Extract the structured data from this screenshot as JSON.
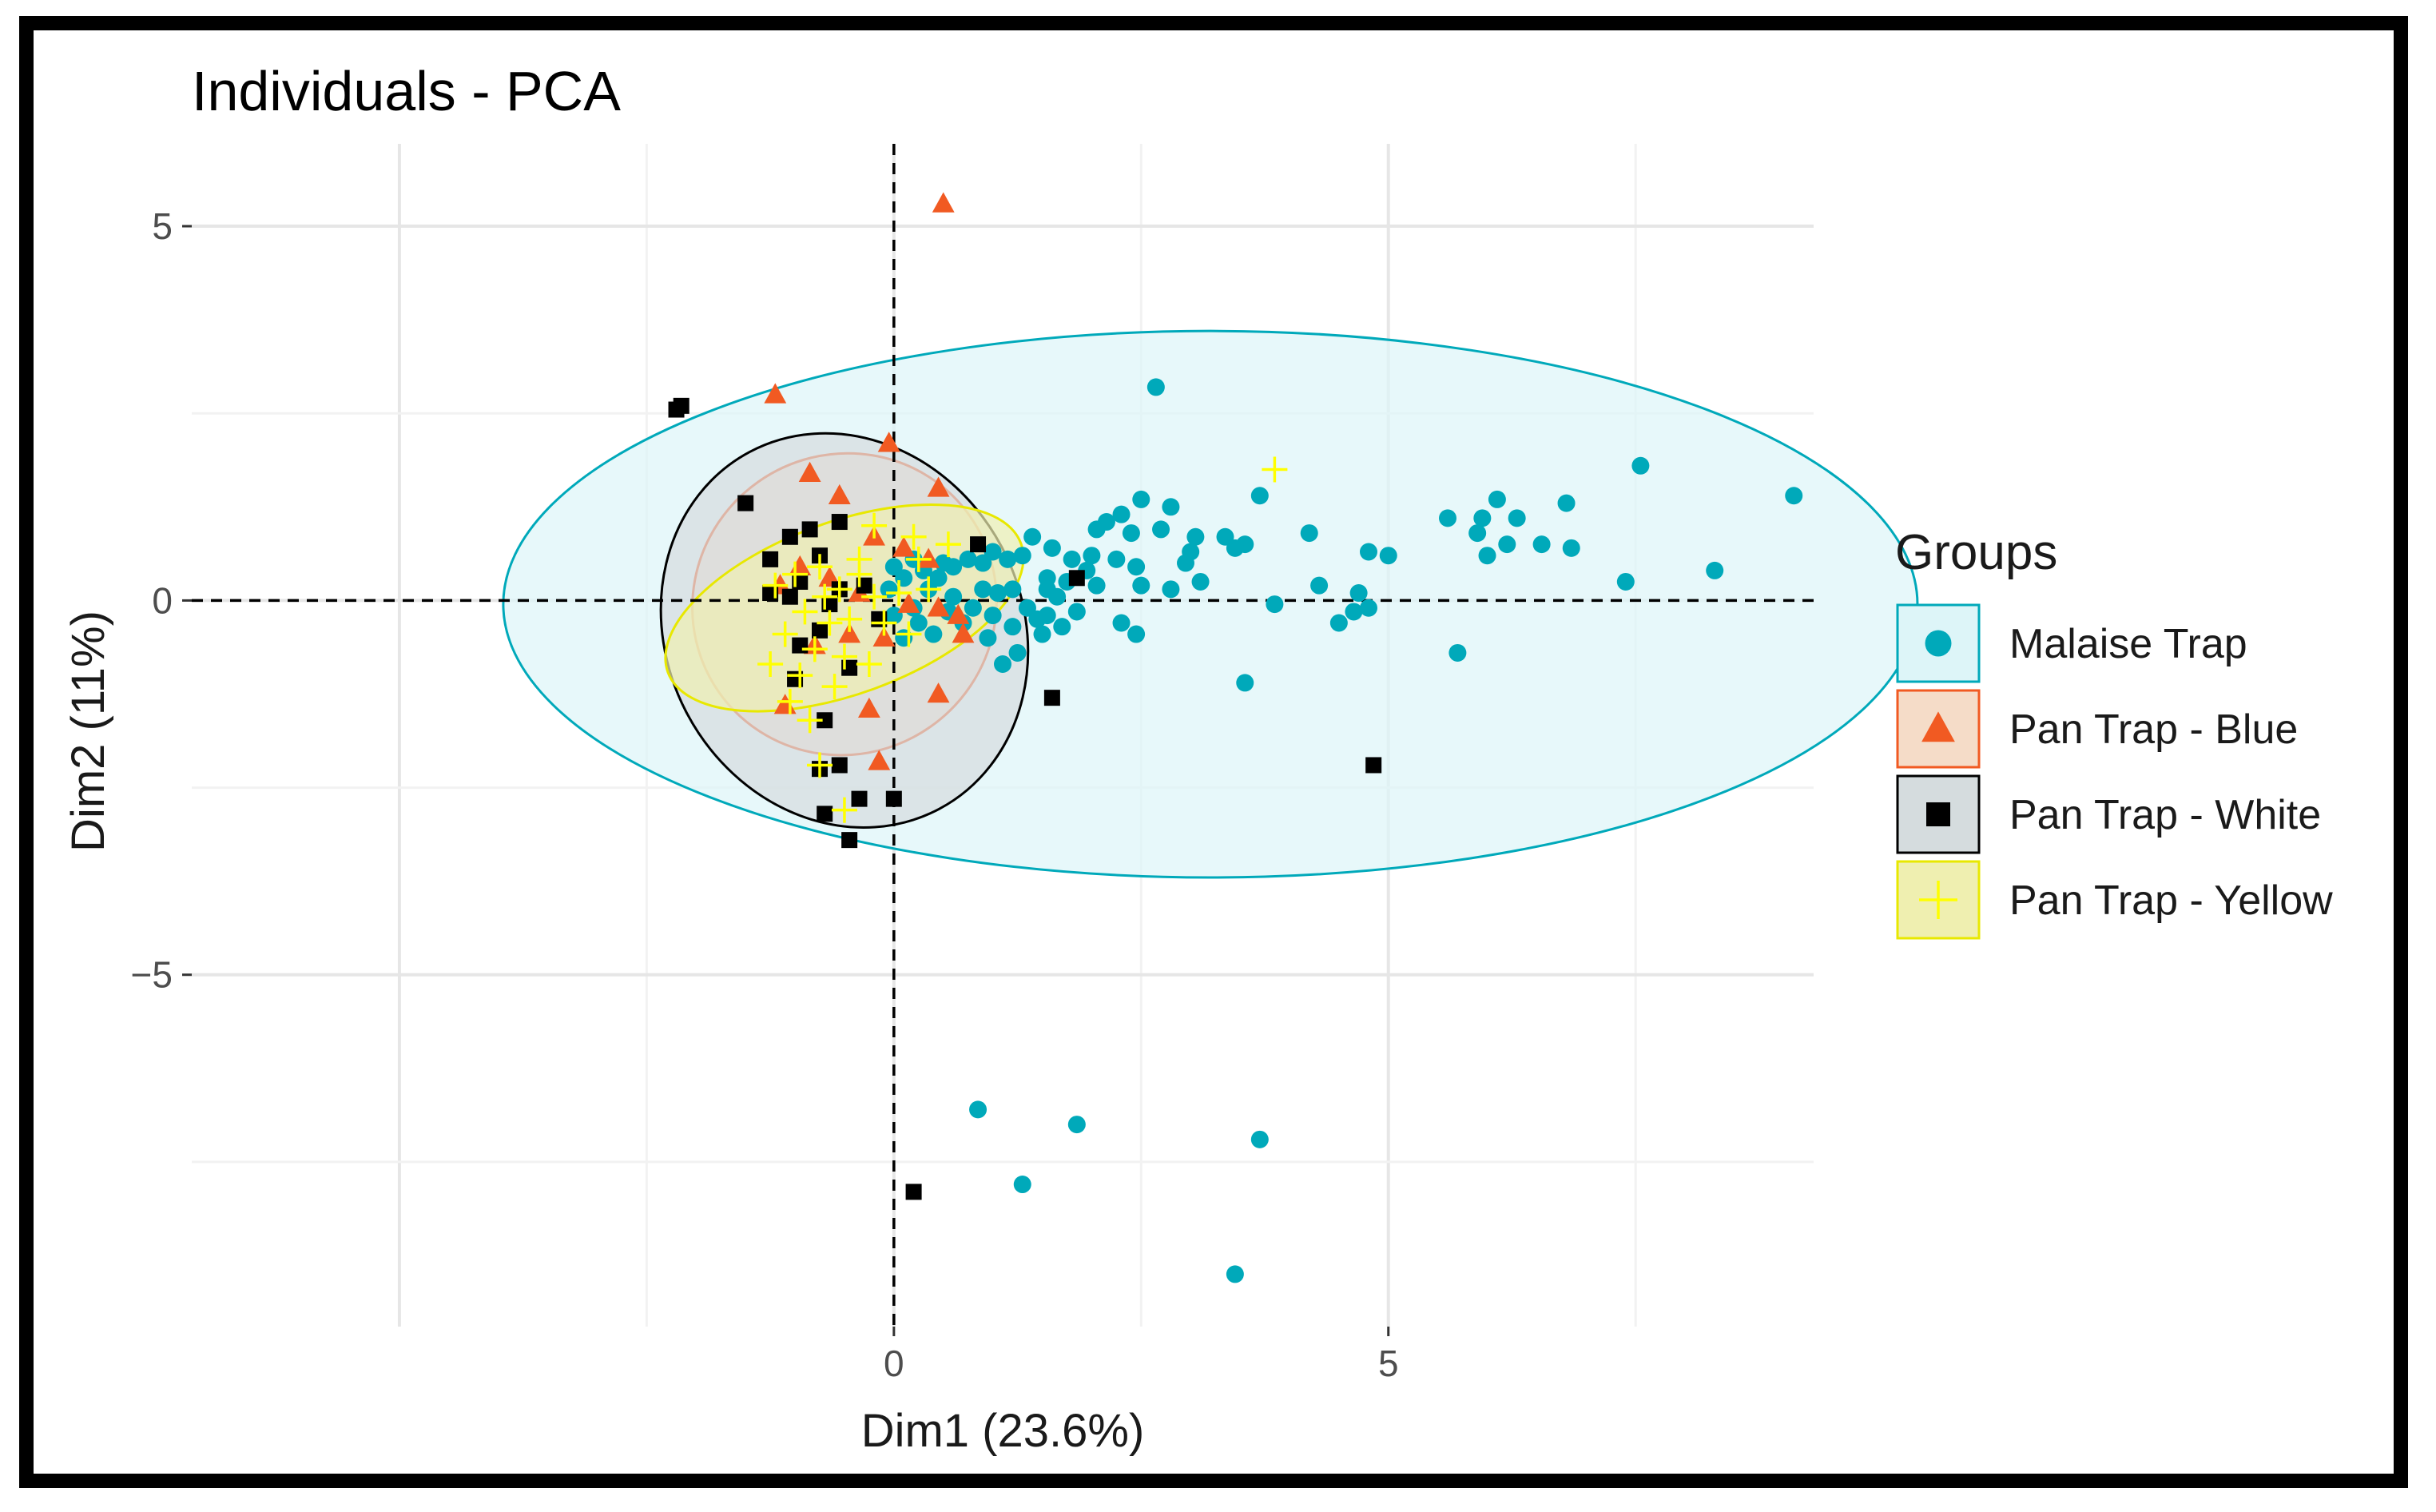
{
  "chart_data": {
    "type": "scatter",
    "title": "Individuals - PCA",
    "xlabel": "Dim1 (23.6%)",
    "ylabel": "Dim2 (11%)",
    "xlim": [
      -7.1,
      9.3
    ],
    "ylim": [
      -9.7,
      6.1
    ],
    "xticks": [
      0,
      5
    ],
    "xtick_labels": [
      "0",
      "5"
    ],
    "yticks": [
      5,
      0,
      -5
    ],
    "ytick_labels": [
      "5",
      "0",
      "−5"
    ],
    "legend_title": "Groups",
    "legend_position": "right",
    "reference_lines": {
      "x": 0,
      "y": 0,
      "style": "dashed"
    },
    "series": [
      {
        "name": "Malaise Trap",
        "color": "#00A9BA",
        "fill": "#DDF5F8",
        "shape": "circle",
        "ellipse": {
          "cx": 3.2,
          "cy": -0.05,
          "rx": 7.15,
          "ry": 3.65,
          "angle": 0
        },
        "points": [
          [
            2.65,
            2.85
          ],
          [
            7.55,
            1.8
          ],
          [
            9.1,
            1.4
          ],
          [
            6.8,
            1.3
          ],
          [
            6.1,
            1.35
          ],
          [
            6.3,
            1.1
          ],
          [
            5.95,
            1.1
          ],
          [
            5.6,
            1.1
          ],
          [
            5.9,
            0.9
          ],
          [
            6.2,
            0.75
          ],
          [
            6.85,
            0.7
          ],
          [
            6.55,
            0.75
          ],
          [
            6.0,
            0.6
          ],
          [
            5.0,
            0.6
          ],
          [
            4.8,
            0.65
          ],
          [
            4.2,
            0.9
          ],
          [
            3.55,
            0.75
          ],
          [
            3.7,
            1.4
          ],
          [
            2.5,
            1.35
          ],
          [
            2.8,
            1.25
          ],
          [
            2.3,
            1.15
          ],
          [
            2.15,
            1.05
          ],
          [
            2.05,
            0.95
          ],
          [
            2.4,
            0.9
          ],
          [
            2.7,
            0.95
          ],
          [
            3.05,
            0.85
          ],
          [
            3.35,
            0.85
          ],
          [
            3.45,
            0.7
          ],
          [
            3.0,
            0.65
          ],
          [
            2.95,
            0.5
          ],
          [
            2.45,
            0.45
          ],
          [
            2.25,
            0.55
          ],
          [
            2.0,
            0.6
          ],
          [
            1.8,
            0.55
          ],
          [
            1.6,
            0.7
          ],
          [
            1.4,
            0.85
          ],
          [
            1.3,
            0.6
          ],
          [
            1.15,
            0.55
          ],
          [
            1.0,
            0.65
          ],
          [
            0.9,
            0.5
          ],
          [
            0.75,
            0.55
          ],
          [
            0.6,
            0.45
          ],
          [
            0.5,
            0.5
          ],
          [
            0.45,
            0.3
          ],
          [
            0.3,
            0.4
          ],
          [
            0.2,
            0.55
          ],
          [
            0.1,
            0.3
          ],
          [
            0.0,
            0.45
          ],
          [
            1.55,
            0.3
          ],
          [
            1.75,
            0.25
          ],
          [
            2.05,
            0.2
          ],
          [
            1.95,
            0.4
          ],
          [
            2.5,
            0.2
          ],
          [
            2.8,
            0.15
          ],
          [
            3.1,
            0.25
          ],
          [
            1.2,
            0.15
          ],
          [
            1.05,
            0.1
          ],
          [
            0.9,
            0.15
          ],
          [
            0.8,
            -0.1
          ],
          [
            1.0,
            -0.2
          ],
          [
            1.2,
            -0.35
          ],
          [
            1.35,
            -0.1
          ],
          [
            1.55,
            -0.2
          ],
          [
            1.7,
            -0.35
          ],
          [
            1.85,
            -0.15
          ],
          [
            1.5,
            -0.45
          ],
          [
            1.25,
            -0.7
          ],
          [
            1.1,
            -0.85
          ],
          [
            0.95,
            -0.5
          ],
          [
            0.7,
            -0.3
          ],
          [
            0.55,
            -0.15
          ],
          [
            0.4,
            -0.45
          ],
          [
            0.25,
            -0.3
          ],
          [
            0.1,
            -0.5
          ],
          [
            0.0,
            -0.2
          ],
          [
            -0.05,
            0.15
          ],
          [
            0.2,
            -0.1
          ],
          [
            2.3,
            -0.3
          ],
          [
            2.45,
            -0.45
          ],
          [
            3.85,
            -0.05
          ],
          [
            4.3,
            0.2
          ],
          [
            4.5,
            -0.3
          ],
          [
            4.7,
            0.1
          ],
          [
            4.65,
            -0.15
          ],
          [
            4.8,
            -0.1
          ],
          [
            5.7,
            -0.7
          ],
          [
            3.55,
            -1.1
          ],
          [
            7.4,
            0.25
          ],
          [
            8.3,
            0.4
          ],
          [
            0.85,
            -6.8
          ],
          [
            1.3,
            -7.8
          ],
          [
            1.85,
            -7.0
          ],
          [
            3.7,
            -7.2
          ],
          [
            3.45,
            -9.0
          ],
          [
            1.55,
            0.15
          ],
          [
            1.65,
            0.05
          ],
          [
            1.45,
            -0.25
          ],
          [
            0.35,
            0.15
          ],
          [
            0.6,
            0.05
          ]
        ]
      },
      {
        "name": "Pan Trap - Blue",
        "color": "#F15A22",
        "fill": "#F5DCC8",
        "shape": "triangle",
        "ellipse": {
          "cx": -0.5,
          "cy": -0.05,
          "rx": 1.55,
          "ry": 2.0,
          "angle": -35
        },
        "points": [
          [
            0.5,
            5.3
          ],
          [
            -1.2,
            2.75
          ],
          [
            -0.05,
            2.1
          ],
          [
            0.45,
            1.5
          ],
          [
            -0.85,
            1.7
          ],
          [
            -0.55,
            1.4
          ],
          [
            -0.2,
            0.85
          ],
          [
            0.1,
            0.7
          ],
          [
            0.35,
            0.55
          ],
          [
            -0.65,
            0.3
          ],
          [
            -0.95,
            0.45
          ],
          [
            -1.15,
            0.2
          ],
          [
            -0.35,
            0.1
          ],
          [
            0.15,
            -0.05
          ],
          [
            0.45,
            -0.1
          ],
          [
            0.65,
            -0.2
          ],
          [
            -0.1,
            -0.5
          ],
          [
            -0.45,
            -0.45
          ],
          [
            -0.8,
            -0.6
          ],
          [
            -1.1,
            -1.4
          ],
          [
            -0.25,
            -1.45
          ],
          [
            0.45,
            -1.25
          ],
          [
            -0.15,
            -2.15
          ],
          [
            0.7,
            -0.45
          ]
        ]
      },
      {
        "name": "Pan Trap - White",
        "color": "#000000",
        "fill": "#D5DCDE",
        "shape": "square",
        "ellipse": {
          "cx": -0.5,
          "cy": -0.4,
          "rx": 1.8,
          "ry": 2.7,
          "angle": -28
        },
        "points": [
          [
            -2.15,
            2.6
          ],
          [
            -2.2,
            2.55
          ],
          [
            -1.5,
            1.3
          ],
          [
            -0.55,
            1.05
          ],
          [
            -0.85,
            0.95
          ],
          [
            -1.05,
            0.85
          ],
          [
            -0.75,
            0.6
          ],
          [
            -1.25,
            0.55
          ],
          [
            -0.95,
            0.25
          ],
          [
            -0.55,
            0.15
          ],
          [
            -0.3,
            0.2
          ],
          [
            -1.05,
            0.05
          ],
          [
            -0.65,
            -0.05
          ],
          [
            -0.75,
            -0.4
          ],
          [
            -0.95,
            -0.6
          ],
          [
            -0.45,
            -0.9
          ],
          [
            -1.0,
            -1.05
          ],
          [
            -0.7,
            -1.6
          ],
          [
            0.85,
            0.75
          ],
          [
            1.85,
            0.3
          ],
          [
            1.6,
            -1.3
          ],
          [
            -0.55,
            -2.2
          ],
          [
            -0.75,
            -2.25
          ],
          [
            -0.35,
            -2.65
          ],
          [
            0.0,
            -2.65
          ],
          [
            -0.7,
            -2.85
          ],
          [
            -0.45,
            -3.2
          ],
          [
            0.2,
            -7.9
          ],
          [
            4.85,
            -2.2
          ],
          [
            -1.25,
            0.1
          ],
          [
            -0.15,
            -0.25
          ]
        ]
      },
      {
        "name": "Pan Trap - Yellow",
        "color": "#FFFF00",
        "fill": "#EFEFB0",
        "shape": "cross",
        "ellipse": {
          "cx": -0.5,
          "cy": -0.1,
          "rx": 1.9,
          "ry": 1.15,
          "angle": -20
        },
        "points": [
          [
            3.85,
            1.75
          ],
          [
            -0.2,
            1.0
          ],
          [
            0.2,
            0.85
          ],
          [
            0.55,
            0.75
          ],
          [
            0.25,
            0.55
          ],
          [
            -0.35,
            0.55
          ],
          [
            -0.75,
            0.45
          ],
          [
            -1.0,
            0.35
          ],
          [
            -1.2,
            0.2
          ],
          [
            -0.55,
            0.15
          ],
          [
            -0.2,
            0.05
          ],
          [
            0.05,
            0.1
          ],
          [
            0.35,
            0.15
          ],
          [
            -0.9,
            -0.15
          ],
          [
            -0.45,
            -0.25
          ],
          [
            -0.1,
            -0.3
          ],
          [
            -1.1,
            -0.45
          ],
          [
            -0.8,
            -0.65
          ],
          [
            -0.5,
            -0.75
          ],
          [
            -0.25,
            -0.85
          ],
          [
            -0.95,
            -1.0
          ],
          [
            -1.05,
            -1.35
          ],
          [
            -0.85,
            -1.6
          ],
          [
            -0.75,
            -2.2
          ],
          [
            -0.5,
            -2.8
          ],
          [
            -0.65,
            -0.3
          ],
          [
            -0.35,
            0.35
          ],
          [
            -0.7,
            0.05
          ],
          [
            0.15,
            -0.45
          ],
          [
            -1.25,
            -0.85
          ],
          [
            -0.6,
            -1.15
          ]
        ]
      }
    ]
  }
}
